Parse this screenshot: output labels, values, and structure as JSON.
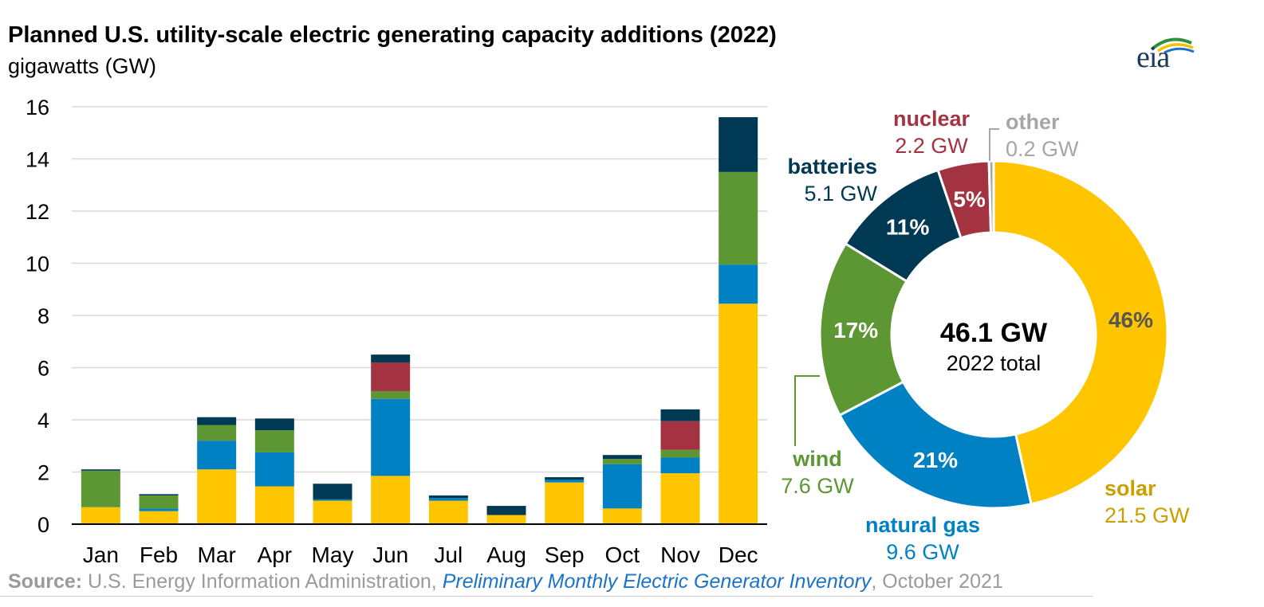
{
  "title": "Planned U.S. utility-scale electric generating capacity additions (2022)",
  "subtitle": "gigawatts (GW)",
  "logo_text": "eia",
  "source": {
    "label": "Source:",
    "org": "U.S. Energy Information Administration, ",
    "publication": "Preliminary Monthly Electric Generator Inventory",
    "date": ", October 2021"
  },
  "colors": {
    "solar": "#FFC600",
    "natural_gas": "#0081C3",
    "wind": "#5D9733",
    "nuclear": "#A33340",
    "batteries": "#003953",
    "other": "#A6A6A6",
    "grid": "#D9D9D9"
  },
  "chart_data": [
    {
      "type": "bar",
      "stacked": true,
      "categories": [
        "Jan",
        "Feb",
        "Mar",
        "Apr",
        "May",
        "Jun",
        "Jul",
        "Aug",
        "Sep",
        "Oct",
        "Nov",
        "Dec"
      ],
      "ylim": [
        0,
        16
      ],
      "yticks": [
        0,
        2,
        4,
        6,
        8,
        10,
        12,
        14,
        16
      ],
      "grid": true,
      "series": [
        {
          "key": "solar",
          "values": [
            0.65,
            0.5,
            2.1,
            1.45,
            0.9,
            1.85,
            0.9,
            0.35,
            1.6,
            0.6,
            1.95,
            8.45
          ]
        },
        {
          "key": "natural_gas",
          "values": [
            0,
            0.1,
            1.1,
            1.3,
            0.05,
            2.95,
            0.1,
            0,
            0.1,
            1.7,
            0.6,
            1.5
          ]
        },
        {
          "key": "wind",
          "values": [
            1.4,
            0.5,
            0.6,
            0.85,
            0,
            0.3,
            0,
            0,
            0,
            0.2,
            0.3,
            3.55
          ]
        },
        {
          "key": "nuclear",
          "values": [
            0,
            0,
            0,
            0,
            0,
            1.1,
            0,
            0,
            0,
            0,
            1.1,
            0
          ]
        },
        {
          "key": "batteries",
          "values": [
            0.05,
            0.05,
            0.3,
            0.45,
            0.6,
            0.3,
            0.1,
            0.35,
            0.1,
            0.15,
            0.45,
            2.1
          ]
        }
      ]
    },
    {
      "type": "pie",
      "donut": true,
      "center_value": "46.1 GW",
      "center_label": "2022 total",
      "slices": [
        {
          "key": "solar",
          "label": "solar",
          "value": 21.5,
          "value_label": "21.5 GW",
          "percent_label": "46%"
        },
        {
          "key": "natural_gas",
          "label": "natural gas",
          "value": 9.6,
          "value_label": "9.6 GW",
          "percent_label": "21%"
        },
        {
          "key": "wind",
          "label": "wind",
          "value": 7.6,
          "value_label": "7.6 GW",
          "percent_label": "17%"
        },
        {
          "key": "batteries",
          "label": "batteries",
          "value": 5.1,
          "value_label": "5.1 GW",
          "percent_label": "11%"
        },
        {
          "key": "nuclear",
          "label": "nuclear",
          "value": 2.2,
          "value_label": "2.2 GW",
          "percent_label": "5%"
        },
        {
          "key": "other",
          "label": "other",
          "value": 0.2,
          "value_label": "0.2 GW",
          "percent_label": ""
        }
      ]
    }
  ]
}
